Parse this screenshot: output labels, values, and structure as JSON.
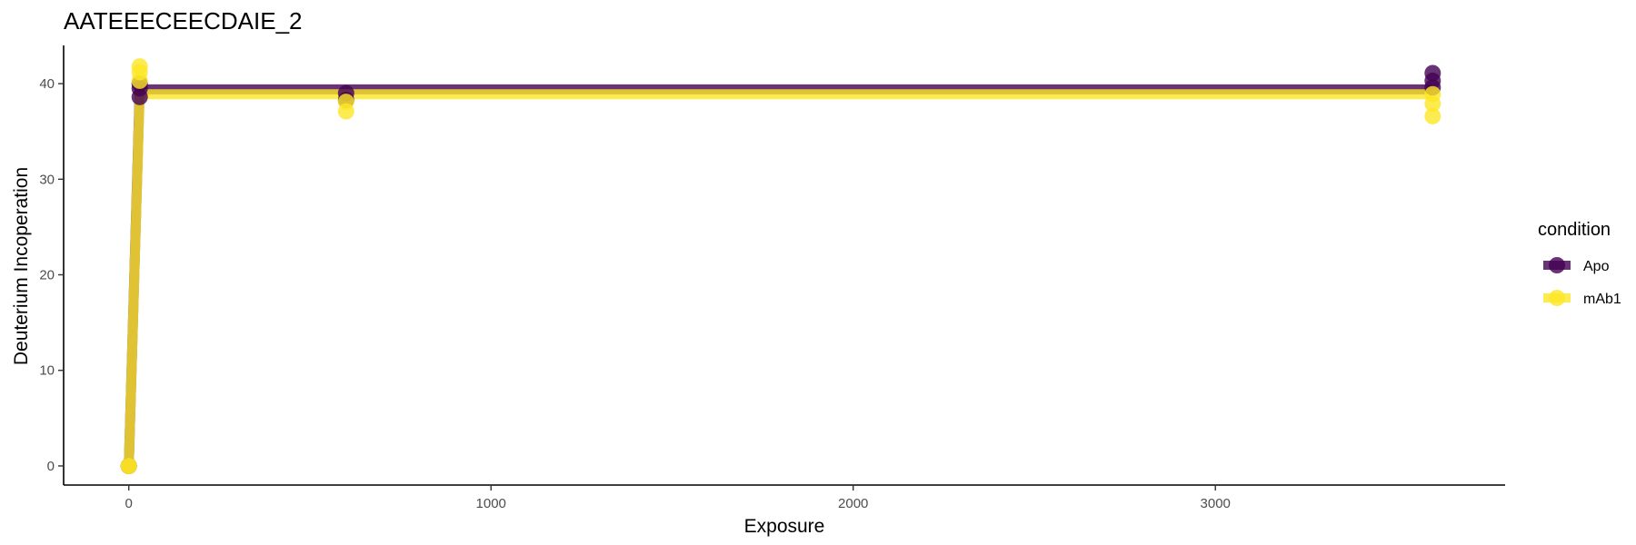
{
  "chart_data": {
    "type": "line",
    "title": "AATEEECEECDAIE_2",
    "xlabel": "Exposure",
    "ylabel": "Deuterium Incoperation",
    "xlim": [
      -180,
      3800
    ],
    "ylim": [
      -2,
      44
    ],
    "x_ticks": [
      0,
      1000,
      2000,
      3000
    ],
    "y_ticks": [
      0,
      10,
      20,
      30,
      40
    ],
    "grid": false,
    "legend": {
      "title": "condition",
      "position": "right"
    },
    "series": [
      {
        "name": "Apo",
        "color": "#440154",
        "line": {
          "x": [
            0,
            30,
            3600
          ],
          "y": [
            0,
            39.4,
            39.4
          ]
        },
        "points": [
          {
            "x": 0,
            "y": 0
          },
          {
            "x": 0,
            "y": 0
          },
          {
            "x": 30,
            "y": 38.6
          },
          {
            "x": 30,
            "y": 39.5
          },
          {
            "x": 30,
            "y": 40.0
          },
          {
            "x": 600,
            "y": 38.3
          },
          {
            "x": 600,
            "y": 39.0
          },
          {
            "x": 3600,
            "y": 39.6
          },
          {
            "x": 3600,
            "y": 40.3
          },
          {
            "x": 3600,
            "y": 41.1
          }
        ]
      },
      {
        "name": "mAb1",
        "color": "#FDE725",
        "line": {
          "x": [
            0,
            30,
            3600
          ],
          "y": [
            0,
            38.9,
            38.9
          ]
        },
        "points": [
          {
            "x": 0,
            "y": 0
          },
          {
            "x": 0,
            "y": 0
          },
          {
            "x": 30,
            "y": 40.3
          },
          {
            "x": 30,
            "y": 41.2
          },
          {
            "x": 30,
            "y": 41.8
          },
          {
            "x": 600,
            "y": 37.1
          },
          {
            "x": 600,
            "y": 38.1
          },
          {
            "x": 3600,
            "y": 36.6
          },
          {
            "x": 3600,
            "y": 37.9
          },
          {
            "x": 3600,
            "y": 38.9
          }
        ]
      }
    ]
  }
}
